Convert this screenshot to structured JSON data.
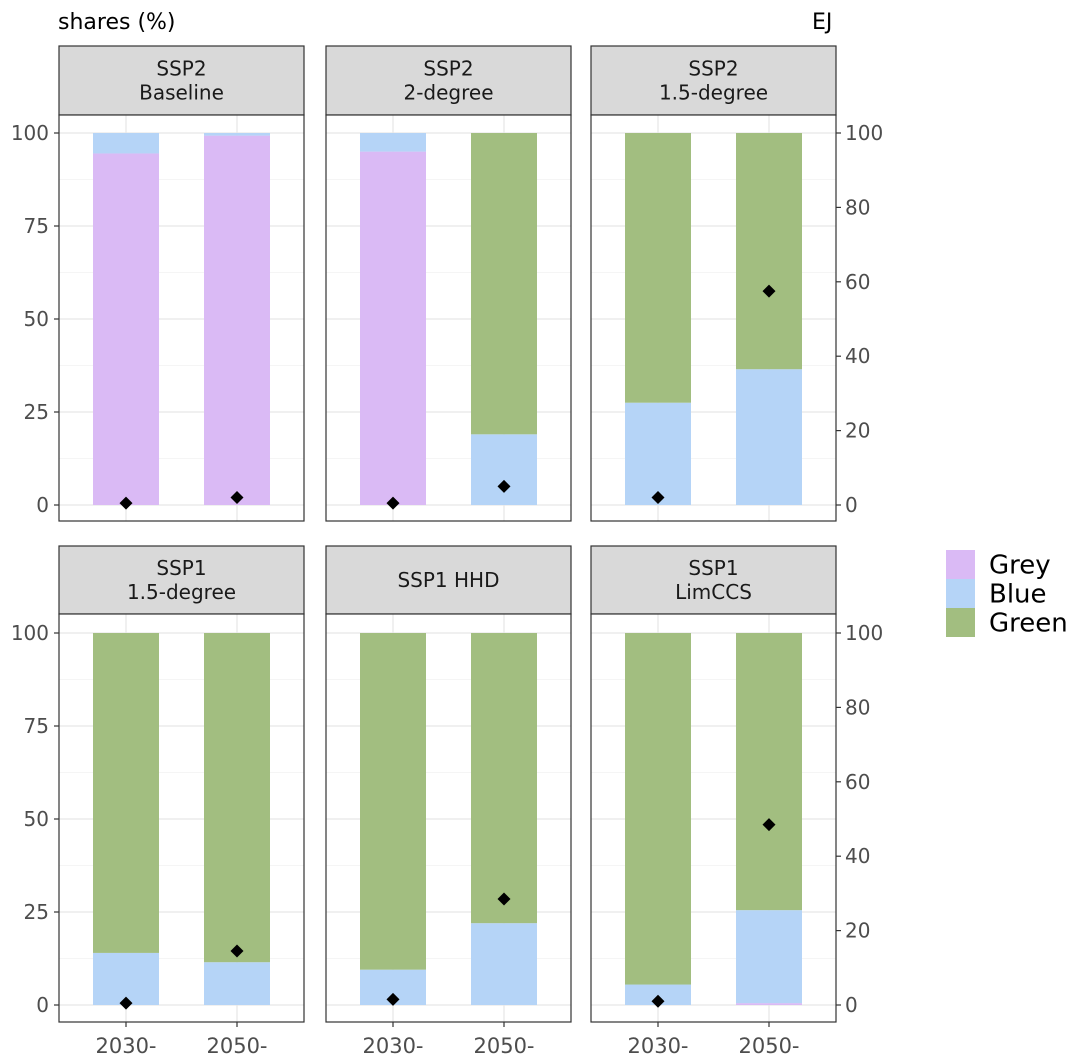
{
  "chart_data": {
    "type": "bar",
    "stacked": true,
    "y_left_title": "shares (%)",
    "y_right_title": "EJ",
    "y_left_ticks": [
      0,
      25,
      50,
      75,
      100
    ],
    "y_left_lim": [
      0,
      100
    ],
    "y_right_ticks": [
      0,
      20,
      40,
      60,
      80,
      100
    ],
    "y_right_lim": [
      0,
      100
    ],
    "x_categories": [
      "2030-",
      "2050-"
    ],
    "legend": {
      "position": "right",
      "entries": [
        {
          "name": "Grey",
          "color": "#dabaf5"
        },
        {
          "name": "Blue",
          "color": "#b5d4f7"
        },
        {
          "name": "Green",
          "color": "#a2be80"
        }
      ]
    },
    "marker": {
      "shape": "diamond",
      "color": "#000000",
      "axis": "right"
    },
    "grid": true,
    "panels": [
      {
        "title_lines": [
          "SSP2",
          "Baseline"
        ],
        "bars": [
          {
            "category": "2030-",
            "grey": 94.5,
            "blue": 5.5,
            "green": 0,
            "marker_ej": 0.5
          },
          {
            "category": "2050-",
            "grey": 99.3,
            "blue": 0.7,
            "green": 0,
            "marker_ej": 2
          }
        ]
      },
      {
        "title_lines": [
          "SSP2",
          "2-degree"
        ],
        "bars": [
          {
            "category": "2030-",
            "grey": 95,
            "blue": 5,
            "green": 0,
            "marker_ej": 0.5
          },
          {
            "category": "2050-",
            "grey": 0,
            "blue": 19,
            "green": 81,
            "marker_ej": 5
          }
        ]
      },
      {
        "title_lines": [
          "SSP2",
          "1.5-degree"
        ],
        "bars": [
          {
            "category": "2030-",
            "grey": 0,
            "blue": 27.5,
            "green": 72.5,
            "marker_ej": 2
          },
          {
            "category": "2050-",
            "grey": 0,
            "blue": 36.5,
            "green": 63.5,
            "marker_ej": 57.5
          }
        ]
      },
      {
        "title_lines": [
          "SSP1",
          "1.5-degree"
        ],
        "bars": [
          {
            "category": "2030-",
            "grey": 0,
            "blue": 14,
            "green": 86,
            "marker_ej": 0.5
          },
          {
            "category": "2050-",
            "grey": 0,
            "blue": 11.5,
            "green": 88.5,
            "marker_ej": 14.5
          }
        ]
      },
      {
        "title_lines": [
          "SSP1 HHD"
        ],
        "bars": [
          {
            "category": "2030-",
            "grey": 0,
            "blue": 9.5,
            "green": 90.5,
            "marker_ej": 1.5
          },
          {
            "category": "2050-",
            "grey": 0,
            "blue": 22,
            "green": 78,
            "marker_ej": 28.5
          }
        ]
      },
      {
        "title_lines": [
          "SSP1",
          "LimCCS"
        ],
        "bars": [
          {
            "category": "2030-",
            "grey": 0,
            "blue": 5.5,
            "green": 94.5,
            "marker_ej": 1
          },
          {
            "category": "2050-",
            "grey": 0.5,
            "blue": 25,
            "green": 74.5,
            "marker_ej": 48.5
          }
        ]
      }
    ]
  }
}
